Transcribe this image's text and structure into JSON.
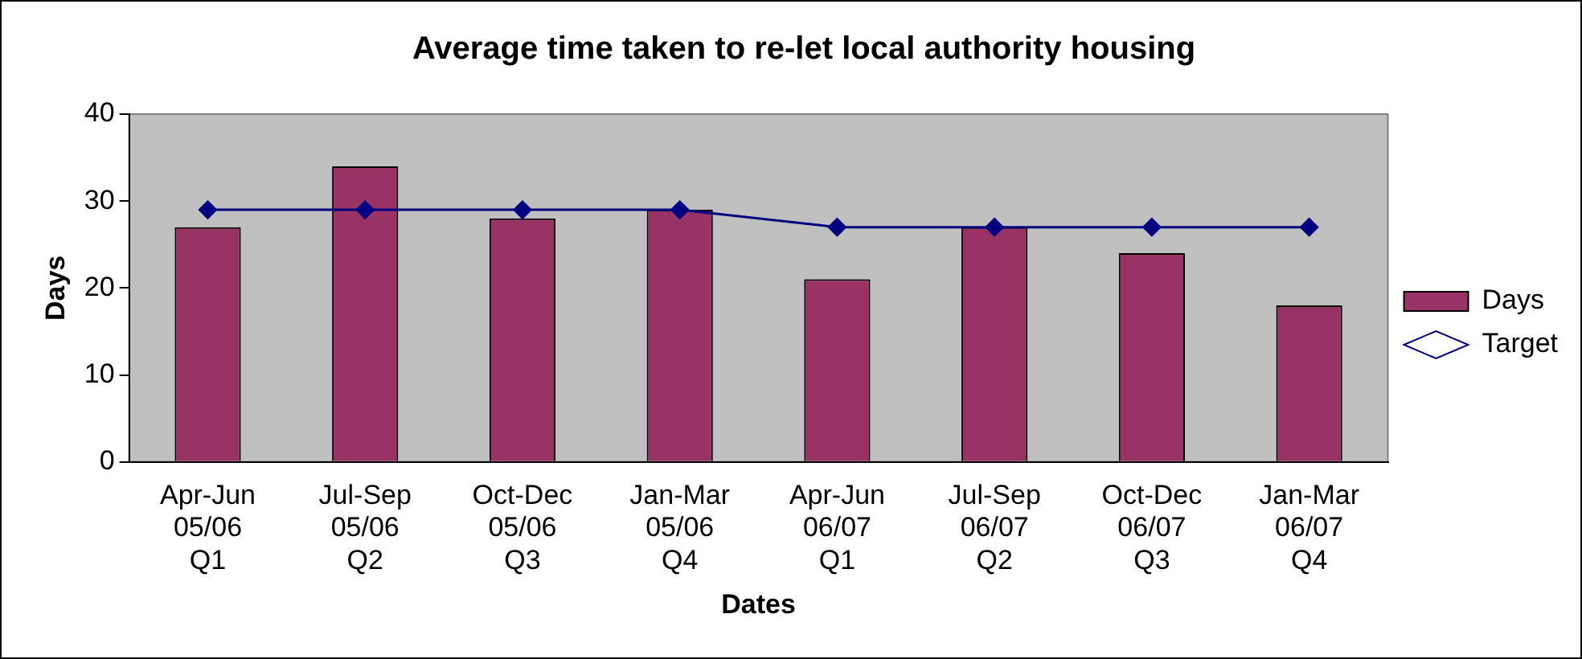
{
  "chart_data": {
    "type": "bar",
    "title": "Average time taken to re-let local authority housing",
    "xlabel": "Dates",
    "ylabel": "Days",
    "categories": [
      "Apr-Jun\n05/06\nQ1",
      "Jul-Sep\n05/06\nQ2",
      "Oct-Dec\n05/06\nQ3",
      "Jan-Mar\n05/06\nQ4",
      "Apr-Jun\n06/07\nQ1",
      "Jul-Sep\n06/07\nQ2",
      "Oct-Dec\n06/07\nQ3",
      "Jan-Mar\n06/07\nQ4"
    ],
    "series": [
      {
        "name": "Days",
        "color": "#993366",
        "values": [
          27,
          34,
          28,
          29,
          21,
          27,
          24,
          18
        ]
      },
      {
        "name": "Target",
        "type": "line",
        "color": "#000080",
        "marker": "diamond",
        "values": [
          29,
          29,
          29,
          29,
          27,
          27,
          27,
          27
        ]
      }
    ],
    "ylim": [
      0,
      40
    ],
    "yticks": [
      0,
      10,
      20,
      30,
      40
    ],
    "legend": "right",
    "grid": false
  }
}
